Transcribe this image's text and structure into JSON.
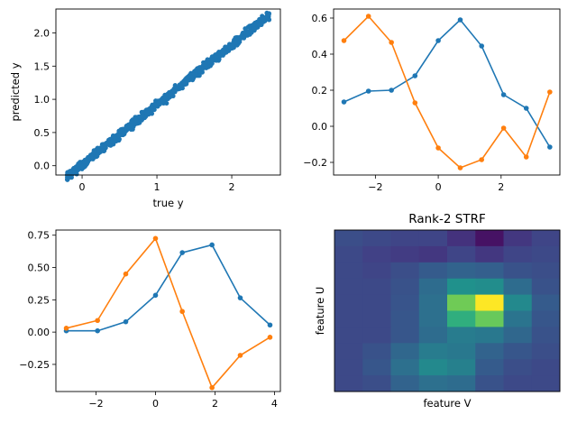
{
  "colors": {
    "blue": "#1f77b4",
    "orange": "#ff7f0e"
  },
  "chart_data": [
    {
      "type": "scatter",
      "xlabel": "true y",
      "ylabel": "predicted y",
      "xlim": [
        -0.35,
        2.65
      ],
      "ylim": [
        -0.14,
        2.36
      ],
      "xticks": [
        0,
        1,
        2
      ],
      "yticks": [
        0.0,
        0.5,
        1.0,
        1.5,
        2.0
      ],
      "xtick_labels": [
        "0",
        "1",
        "2"
      ],
      "ytick_labels": [
        "0.0",
        "0.5",
        "1.0",
        "1.5",
        "2.0"
      ],
      "point_count": 900,
      "trend": {
        "slope": 0.9,
        "intercept": 0.02,
        "x_range": [
          -0.2,
          2.5
        ],
        "noise": 0.08
      },
      "color": "#1f77b4"
    },
    {
      "type": "line",
      "xlim": [
        -3.33,
        3.87
      ],
      "ylim": [
        -0.27,
        0.65
      ],
      "xticks": [
        -2,
        0,
        2
      ],
      "yticks": [
        -0.2,
        0.0,
        0.2,
        0.4,
        0.6
      ],
      "xtick_labels": [
        "−2",
        "0",
        "2"
      ],
      "ytick_labels": [
        "−0.2",
        "0.0",
        "0.2",
        "0.4",
        "0.6"
      ],
      "series": [
        {
          "color": "#1f77b4",
          "x": [
            -3.0,
            -2.22,
            -1.49,
            -0.74,
            0.0,
            0.7,
            1.38,
            2.08,
            2.8,
            3.55
          ],
          "y": [
            0.135,
            0.195,
            0.2,
            0.28,
            0.475,
            0.59,
            0.445,
            0.175,
            0.1,
            -0.115
          ]
        },
        {
          "color": "#ff7f0e",
          "x": [
            -3.0,
            -2.22,
            -1.49,
            -0.74,
            0.0,
            0.7,
            1.38,
            2.08,
            2.8,
            3.55
          ],
          "y": [
            0.475,
            0.61,
            0.465,
            0.13,
            -0.12,
            -0.23,
            -0.185,
            -0.01,
            -0.17,
            0.19
          ]
        }
      ]
    },
    {
      "type": "line",
      "xlim": [
        -3.35,
        4.2
      ],
      "ylim": [
        -0.46,
        0.79
      ],
      "xticks": [
        -2,
        0,
        2,
        4
      ],
      "yticks": [
        -0.25,
        0.0,
        0.25,
        0.5,
        0.75
      ],
      "xtick_labels": [
        "−2",
        "0",
        "2",
        "4"
      ],
      "ytick_labels": [
        "−0.25",
        "0.00",
        "0.25",
        "0.50",
        "0.75"
      ],
      "series": [
        {
          "color": "#1f77b4",
          "x": [
            -3.0,
            -1.95,
            -1.0,
            0.0,
            0.9,
            1.9,
            2.85,
            3.85
          ],
          "y": [
            0.01,
            0.01,
            0.08,
            0.285,
            0.615,
            0.675,
            0.265,
            0.055
          ]
        },
        {
          "color": "#ff7f0e",
          "x": [
            -3.0,
            -1.95,
            -1.0,
            0.0,
            0.9,
            1.9,
            2.85,
            3.85
          ],
          "y": [
            0.03,
            0.09,
            0.45,
            0.725,
            0.16,
            -0.43,
            -0.18,
            -0.04
          ]
        }
      ]
    },
    {
      "type": "heatmap",
      "title": "Rank-2 STRF",
      "xlabel": "feature V",
      "ylabel": "feature U",
      "vmin": 0.0,
      "vmax": 1.0,
      "values": [
        [
          0.3,
          0.28,
          0.26,
          0.26,
          0.18,
          0.06,
          0.2,
          0.26
        ],
        [
          0.28,
          0.24,
          0.22,
          0.2,
          0.26,
          0.2,
          0.26,
          0.28
        ],
        [
          0.28,
          0.26,
          0.3,
          0.36,
          0.4,
          0.38,
          0.32,
          0.3
        ],
        [
          0.28,
          0.28,
          0.32,
          0.44,
          0.62,
          0.6,
          0.44,
          0.32
        ],
        [
          0.28,
          0.28,
          0.33,
          0.46,
          0.83,
          1.0,
          0.58,
          0.36
        ],
        [
          0.28,
          0.28,
          0.34,
          0.46,
          0.72,
          0.82,
          0.48,
          0.34
        ],
        [
          0.28,
          0.28,
          0.34,
          0.44,
          0.52,
          0.5,
          0.42,
          0.32
        ],
        [
          0.28,
          0.32,
          0.42,
          0.52,
          0.5,
          0.4,
          0.34,
          0.3
        ],
        [
          0.28,
          0.34,
          0.46,
          0.58,
          0.54,
          0.36,
          0.3,
          0.28
        ],
        [
          0.28,
          0.3,
          0.4,
          0.46,
          0.44,
          0.32,
          0.28,
          0.28
        ]
      ]
    }
  ]
}
